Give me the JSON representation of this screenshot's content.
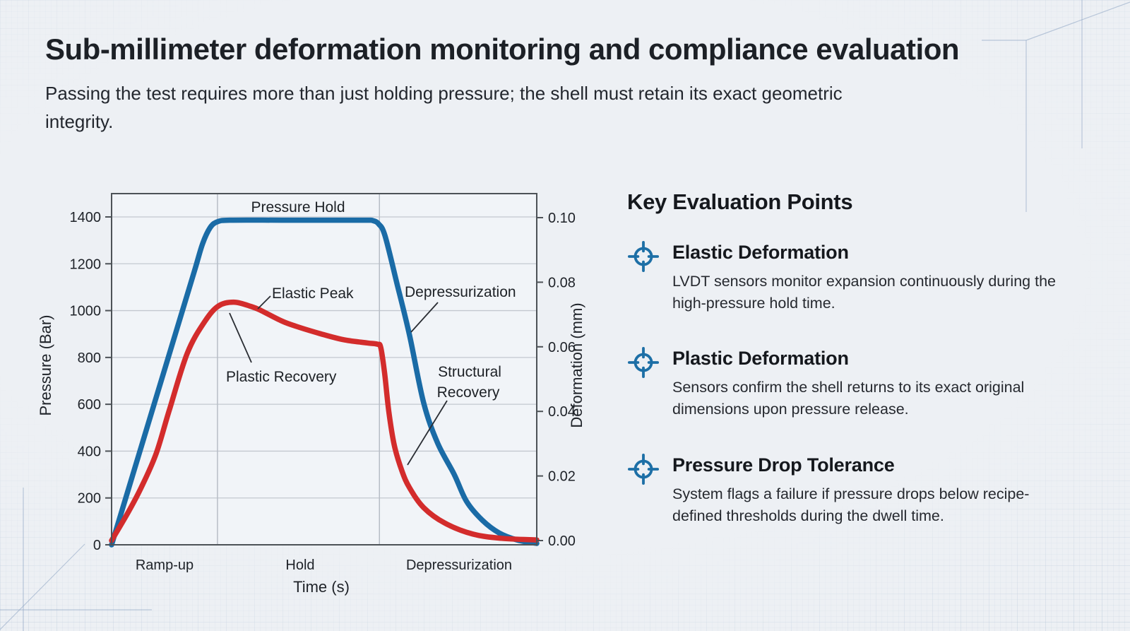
{
  "page": {
    "title": "Sub-millimeter deformation monitoring and compliance evaluation",
    "subtitle": "Passing the test requires more than just holding pressure; the shell must retain its exact geometric integrity."
  },
  "chart_data": {
    "type": "line",
    "title": "",
    "xlabel": "Time (s)",
    "x_phases": [
      "Ramp-up",
      "Hold",
      "Depressurization"
    ],
    "phase_boundaries_frac": [
      0.249,
      0.63
    ],
    "grid": true,
    "axes": {
      "left": {
        "label": "Pressure (Bar)",
        "ticks": [
          "1400",
          "1200",
          "1000",
          "800",
          "600",
          "400",
          "200",
          "0"
        ],
        "range": [
          0,
          1500
        ]
      },
      "right": {
        "label": "Deformation (mm)",
        "ticks": [
          "0.10",
          "0.08",
          "0.06",
          "0.04",
          "0.02",
          "0.00"
        ],
        "range": [
          0,
          0.107
        ]
      }
    },
    "series": [
      {
        "name": "Pressure",
        "axis": "left",
        "color": "#1a6ba6",
        "points": [
          [
            0,
            0
          ],
          [
            0.05,
            300
          ],
          [
            0.1,
            600
          ],
          [
            0.15,
            900
          ],
          [
            0.195,
            1170
          ],
          [
            0.214,
            1285
          ],
          [
            0.232,
            1355
          ],
          [
            0.25,
            1380
          ],
          [
            0.28,
            1386
          ],
          [
            0.4,
            1386
          ],
          [
            0.52,
            1386
          ],
          [
            0.6,
            1386
          ],
          [
            0.615,
            1384
          ],
          [
            0.628,
            1370
          ],
          [
            0.643,
            1320
          ],
          [
            0.672,
            1110
          ],
          [
            0.701,
            893
          ],
          [
            0.734,
            606
          ],
          [
            0.767,
            434
          ],
          [
            0.806,
            300
          ],
          [
            0.835,
            185
          ],
          [
            0.872,
            105
          ],
          [
            0.912,
            50
          ],
          [
            0.955,
            20
          ],
          [
            1,
            6
          ]
        ]
      },
      {
        "name": "Deformation",
        "axis": "right",
        "color": "#d32c2c",
        "points": [
          [
            0,
            0
          ],
          [
            0.04,
            0.009
          ],
          [
            0.07,
            0.0165
          ],
          [
            0.105,
            0.027
          ],
          [
            0.136,
            0.0405
          ],
          [
            0.178,
            0.058
          ],
          [
            0.219,
            0.0678
          ],
          [
            0.252,
            0.0727
          ],
          [
            0.29,
            0.0738
          ],
          [
            0.33,
            0.0724
          ],
          [
            0.352,
            0.0712
          ],
          [
            0.4,
            0.068
          ],
          [
            0.435,
            0.0663
          ],
          [
            0.49,
            0.0641
          ],
          [
            0.545,
            0.0622
          ],
          [
            0.601,
            0.0612
          ],
          [
            0.625,
            0.0608
          ],
          [
            0.633,
            0.0598
          ],
          [
            0.642,
            0.052
          ],
          [
            0.652,
            0.04
          ],
          [
            0.665,
            0.0295
          ],
          [
            0.683,
            0.0215
          ],
          [
            0.701,
            0.0163
          ],
          [
            0.734,
            0.0102
          ],
          [
            0.784,
            0.0054
          ],
          [
            0.85,
            0.002
          ],
          [
            0.917,
            0.0007
          ],
          [
            1,
            0.0002
          ]
        ]
      }
    ],
    "annotations": {
      "pressure_hold": "Pressure Hold",
      "elastic_peak": "Elastic Peak",
      "plastic_recovery": "Plastic Recovery",
      "depressurization": "Depressurization",
      "structural_recovery": [
        "Structural",
        "Recovery"
      ]
    }
  },
  "key_points": {
    "heading": "Key Evaluation Points",
    "items": [
      {
        "icon": "crosshair-target-icon",
        "title": "Elastic Deformation",
        "body": "LVDT sensors monitor expansion continuously during the high-pressure hold time."
      },
      {
        "icon": "crosshair-target-icon",
        "title": "Plastic Deformation",
        "body": "Sensors confirm the shell returns to its exact original dimensions upon pressure release."
      },
      {
        "icon": "crosshair-target-icon",
        "title": "Pressure Drop Tolerance",
        "body": "System flags a failure if pressure drops below recipe-defined thresholds during the dwell time."
      }
    ]
  },
  "colors": {
    "pressure_blue": "#1a6ba6",
    "deformation_red": "#d32c2c",
    "icon_blue": "#1d6fa6",
    "background": "#edf0f4"
  }
}
